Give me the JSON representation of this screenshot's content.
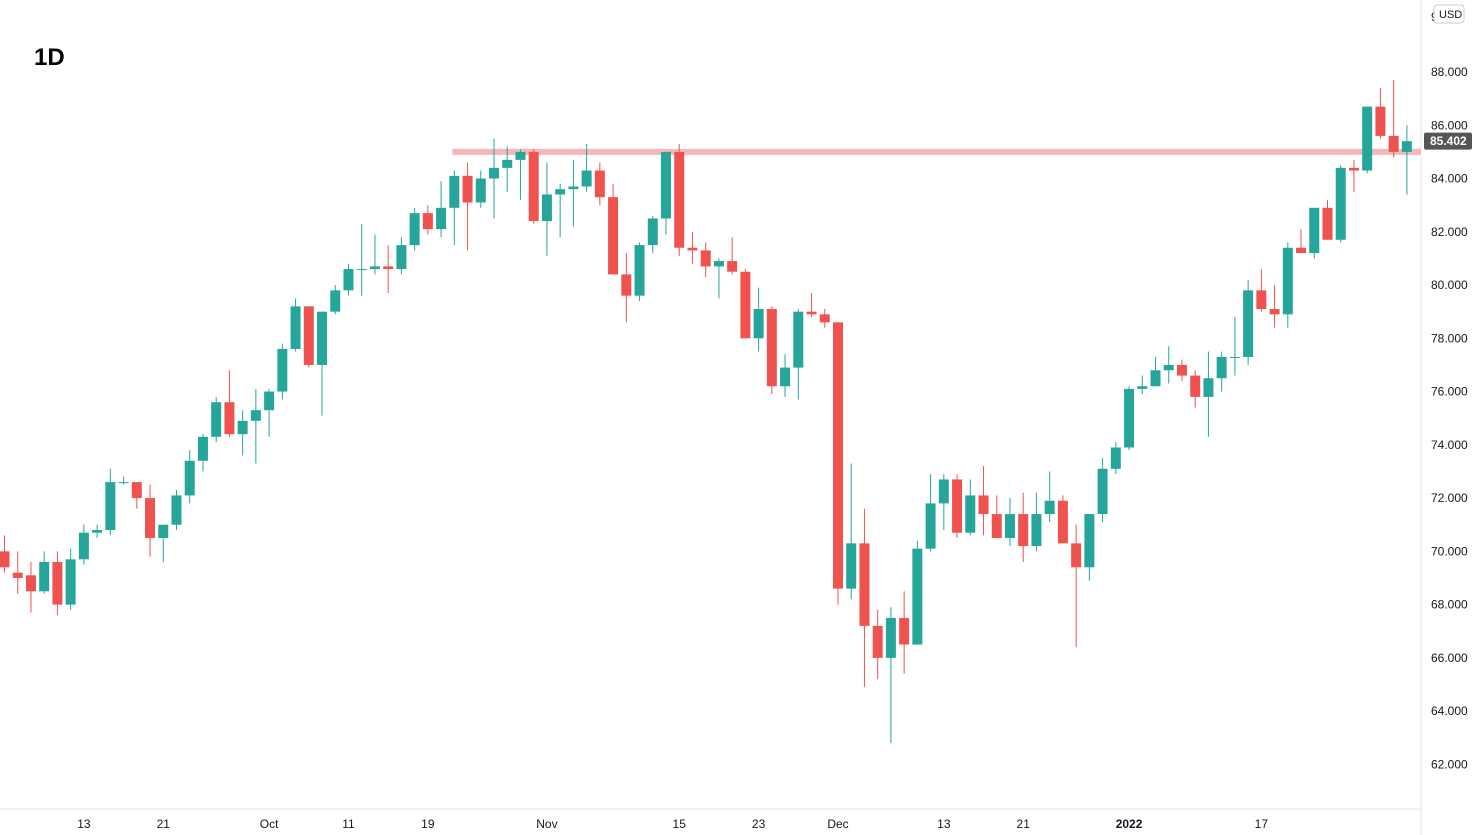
{
  "timeframe": "1D",
  "currency": "USD",
  "top_partial_tick": "9",
  "last_price": "85.402",
  "colors": {
    "up": "#26a69a",
    "down": "#ef5350",
    "resistance": "#f5b7b7",
    "price_tag": "#555555",
    "axis": "#e0e3eb",
    "text": "#131722"
  },
  "chart_data": {
    "type": "candlestick",
    "title": "",
    "xlabel": "",
    "ylabel": "",
    "ylim": [
      60.0,
      90.0
    ],
    "y_ticks": [
      "62.000",
      "64.000",
      "66.000",
      "68.000",
      "70.000",
      "72.000",
      "74.000",
      "76.000",
      "78.000",
      "80.000",
      "82.000",
      "84.000",
      "86.000",
      "88.000"
    ],
    "x_ticks": [
      {
        "label": "13",
        "index": 6
      },
      {
        "label": "21",
        "index": 12
      },
      {
        "label": "Oct",
        "index": 20
      },
      {
        "label": "11",
        "index": 26
      },
      {
        "label": "19",
        "index": 32
      },
      {
        "label": "Nov",
        "index": 41
      },
      {
        "label": "15",
        "index": 51
      },
      {
        "label": "23",
        "index": 57
      },
      {
        "label": "Dec",
        "index": 63
      },
      {
        "label": "13",
        "index": 71
      },
      {
        "label": "21",
        "index": 77
      },
      {
        "label": "2022",
        "index": 85,
        "bold": true
      },
      {
        "label": "17",
        "index": 95
      }
    ],
    "resistance_level": 85.0,
    "resistance_start_index": 34,
    "candles": [
      [
        70.0,
        70.6,
        69.2,
        69.4
      ],
      [
        69.2,
        70.0,
        68.4,
        69.0
      ],
      [
        69.1,
        69.6,
        67.7,
        68.5
      ],
      [
        68.5,
        70.0,
        68.4,
        69.6
      ],
      [
        69.6,
        70.0,
        67.6,
        68.0
      ],
      [
        68.0,
        70.1,
        67.8,
        69.7
      ],
      [
        69.7,
        71.0,
        69.5,
        70.7
      ],
      [
        70.7,
        71.0,
        70.5,
        70.8
      ],
      [
        70.8,
        73.1,
        70.6,
        72.6
      ],
      [
        72.6,
        72.8,
        72.5,
        72.6
      ],
      [
        72.6,
        72.6,
        71.6,
        72.0
      ],
      [
        72.0,
        72.5,
        69.8,
        70.5
      ],
      [
        70.5,
        71.0,
        69.6,
        71.0
      ],
      [
        71.0,
        72.3,
        70.8,
        72.1
      ],
      [
        72.1,
        73.8,
        71.8,
        73.4
      ],
      [
        73.4,
        74.4,
        73.0,
        74.3
      ],
      [
        74.3,
        75.8,
        74.1,
        75.6
      ],
      [
        75.6,
        76.8,
        74.3,
        74.4
      ],
      [
        74.4,
        75.3,
        73.6,
        74.9
      ],
      [
        74.9,
        76.1,
        73.3,
        75.3
      ],
      [
        75.3,
        76.1,
        74.3,
        76.0
      ],
      [
        76.0,
        77.8,
        75.7,
        77.6
      ],
      [
        77.6,
        79.5,
        77.5,
        79.2
      ],
      [
        79.2,
        79.2,
        76.9,
        77.0
      ],
      [
        77.0,
        79.0,
        75.1,
        79.0
      ],
      [
        79.0,
        80.0,
        78.9,
        79.8
      ],
      [
        79.8,
        80.8,
        79.6,
        80.6
      ],
      [
        80.6,
        82.3,
        79.6,
        80.6
      ],
      [
        80.6,
        81.9,
        80.4,
        80.7
      ],
      [
        80.7,
        81.5,
        79.7,
        80.6
      ],
      [
        80.6,
        81.8,
        80.4,
        81.5
      ],
      [
        81.5,
        82.9,
        81.3,
        82.7
      ],
      [
        82.7,
        83.0,
        81.9,
        82.1
      ],
      [
        82.1,
        83.9,
        81.8,
        82.9
      ],
      [
        82.9,
        84.3,
        81.5,
        84.1
      ],
      [
        84.1,
        84.6,
        81.3,
        83.1
      ],
      [
        83.1,
        84.3,
        82.9,
        84.0
      ],
      [
        84.0,
        85.5,
        82.5,
        84.4
      ],
      [
        84.4,
        85.2,
        83.5,
        84.7
      ],
      [
        84.7,
        85.1,
        83.2,
        85.0
      ],
      [
        85.0,
        85.1,
        82.3,
        82.4
      ],
      [
        82.4,
        84.6,
        81.1,
        83.4
      ],
      [
        83.4,
        83.8,
        81.8,
        83.6
      ],
      [
        83.6,
        84.7,
        82.2,
        83.7
      ],
      [
        83.7,
        85.3,
        83.5,
        84.3
      ],
      [
        84.3,
        84.6,
        83.0,
        83.3
      ],
      [
        83.3,
        83.8,
        80.5,
        80.4
      ],
      [
        80.4,
        81.2,
        78.6,
        79.6
      ],
      [
        79.6,
        81.6,
        79.4,
        81.5
      ],
      [
        81.5,
        82.6,
        81.2,
        82.5
      ],
      [
        82.5,
        84.7,
        81.9,
        85.0
      ],
      [
        85.0,
        85.3,
        81.1,
        81.4
      ],
      [
        81.4,
        82.0,
        80.8,
        81.3
      ],
      [
        81.3,
        81.6,
        80.3,
        80.7
      ],
      [
        80.7,
        81.0,
        79.5,
        80.9
      ],
      [
        80.9,
        81.8,
        80.4,
        80.5
      ],
      [
        80.5,
        80.6,
        78.2,
        78.0
      ],
      [
        78.0,
        79.9,
        77.5,
        79.1
      ],
      [
        79.1,
        79.2,
        75.9,
        76.2
      ],
      [
        76.2,
        77.4,
        75.8,
        76.9
      ],
      [
        76.9,
        79.1,
        75.7,
        79.0
      ],
      [
        79.0,
        79.7,
        78.8,
        78.9
      ],
      [
        78.9,
        79.1,
        78.4,
        78.6
      ],
      [
        78.6,
        78.6,
        68.0,
        68.6
      ],
      [
        68.6,
        73.3,
        68.2,
        70.3
      ],
      [
        70.3,
        71.6,
        64.9,
        67.2
      ],
      [
        67.2,
        67.8,
        65.2,
        66.0
      ],
      [
        66.0,
        67.9,
        62.8,
        67.5
      ],
      [
        67.5,
        68.5,
        65.4,
        66.5
      ],
      [
        66.5,
        70.4,
        66.5,
        70.1
      ],
      [
        70.1,
        72.9,
        70.0,
        71.8
      ],
      [
        71.8,
        72.9,
        70.8,
        72.7
      ],
      [
        72.7,
        72.9,
        70.5,
        70.7
      ],
      [
        70.7,
        72.7,
        70.6,
        72.1
      ],
      [
        72.1,
        73.2,
        70.6,
        71.4
      ],
      [
        71.4,
        72.1,
        70.5,
        70.5
      ],
      [
        70.5,
        72.0,
        70.2,
        71.4
      ],
      [
        71.4,
        72.2,
        69.6,
        70.2
      ],
      [
        70.2,
        72.2,
        70.0,
        71.4
      ],
      [
        71.4,
        73.0,
        71.1,
        71.9
      ],
      [
        71.9,
        72.1,
        70.6,
        70.3
      ],
      [
        70.3,
        71.0,
        66.4,
        69.4
      ],
      [
        69.4,
        71.4,
        68.9,
        71.4
      ],
      [
        71.4,
        73.5,
        71.1,
        73.1
      ],
      [
        73.1,
        74.1,
        72.9,
        73.9
      ],
      [
        73.9,
        76.2,
        73.8,
        76.1
      ],
      [
        76.1,
        76.6,
        75.9,
        76.2
      ],
      [
        76.2,
        77.3,
        76.2,
        76.8
      ],
      [
        76.8,
        77.7,
        76.3,
        77.0
      ],
      [
        77.0,
        77.2,
        76.4,
        76.6
      ],
      [
        76.6,
        76.8,
        75.4,
        75.8
      ],
      [
        75.8,
        77.5,
        74.3,
        76.5
      ],
      [
        76.5,
        77.5,
        76.0,
        77.3
      ],
      [
        77.3,
        78.8,
        76.6,
        77.3
      ],
      [
        77.3,
        80.2,
        77.0,
        79.8
      ],
      [
        79.8,
        80.6,
        79.0,
        79.1
      ],
      [
        79.1,
        80.0,
        78.4,
        78.9
      ],
      [
        78.9,
        81.6,
        78.4,
        81.4
      ],
      [
        81.4,
        82.1,
        81.2,
        81.2
      ],
      [
        81.2,
        82.8,
        81.0,
        82.9
      ],
      [
        82.9,
        83.2,
        81.7,
        81.7
      ],
      [
        81.7,
        84.5,
        81.6,
        84.4
      ],
      [
        84.4,
        84.7,
        83.5,
        84.3
      ],
      [
        84.3,
        86.4,
        84.2,
        86.7
      ],
      [
        86.7,
        87.4,
        85.5,
        85.6
      ],
      [
        85.6,
        87.7,
        84.8,
        85.0
      ],
      [
        85.0,
        86.0,
        83.4,
        85.402
      ]
    ]
  }
}
